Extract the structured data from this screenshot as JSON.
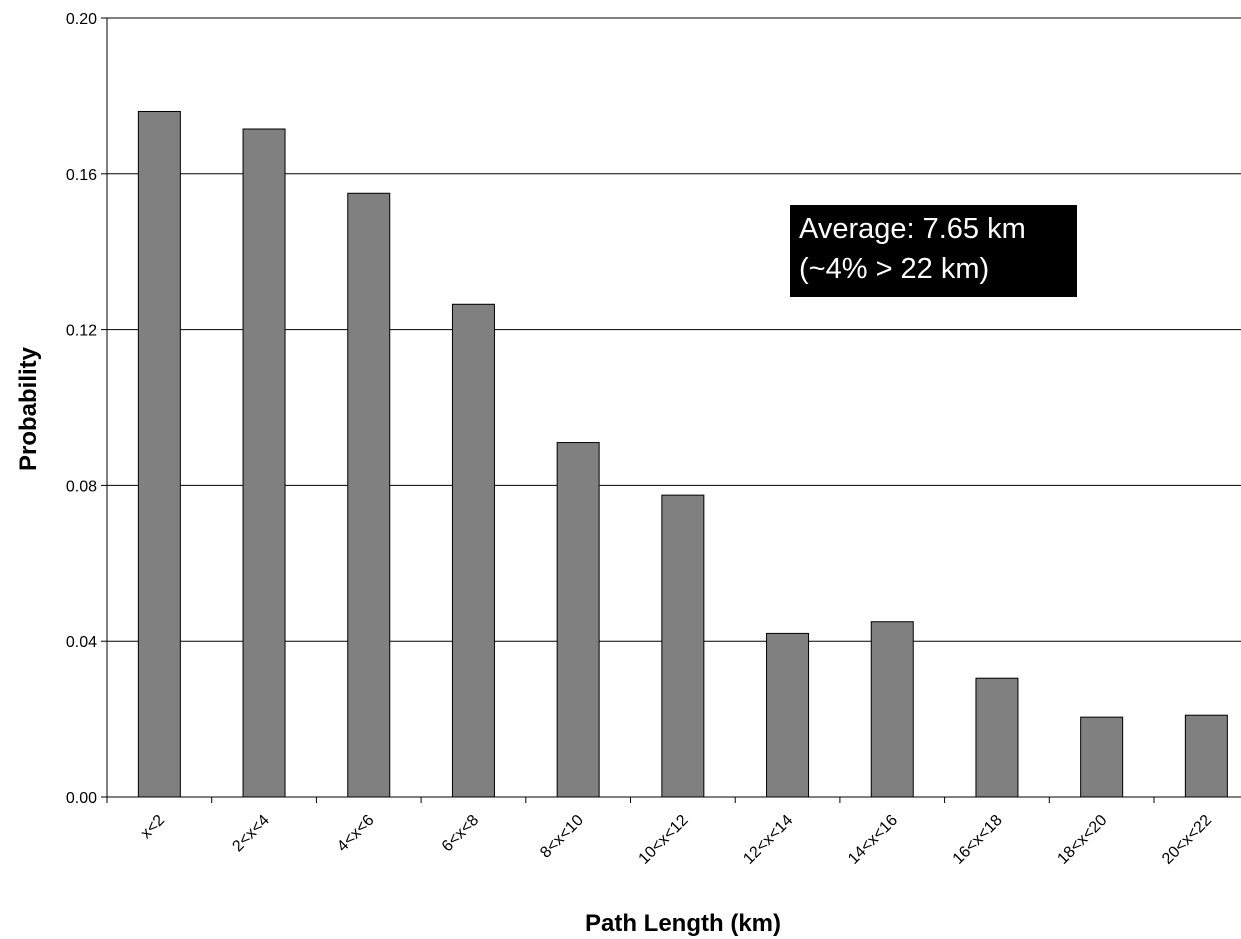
{
  "chart_data": {
    "type": "bar",
    "title": "",
    "xlabel": "Path Length (km)",
    "ylabel": "Probability",
    "categories": [
      "x<2",
      "2<x<4",
      "4<x<6",
      "6<x<8",
      "8<x<10",
      "10<x<12",
      "12<x<14",
      "14<x<16",
      "16<x<18",
      "18<x<20",
      "20<x<22"
    ],
    "values": [
      0.176,
      0.1715,
      0.155,
      0.1265,
      0.091,
      0.0775,
      0.042,
      0.045,
      0.0305,
      0.0205,
      0.021
    ],
    "ylim": [
      0,
      0.2
    ],
    "yticks": [
      "0.00",
      "0.04",
      "0.08",
      "0.12",
      "0.16",
      "0.20"
    ],
    "grid": true,
    "legend": "none",
    "bar_color": "#808080",
    "annotation": {
      "line1": "Average: 7.65 km",
      "line2": "(~4% > 22 km)"
    }
  }
}
